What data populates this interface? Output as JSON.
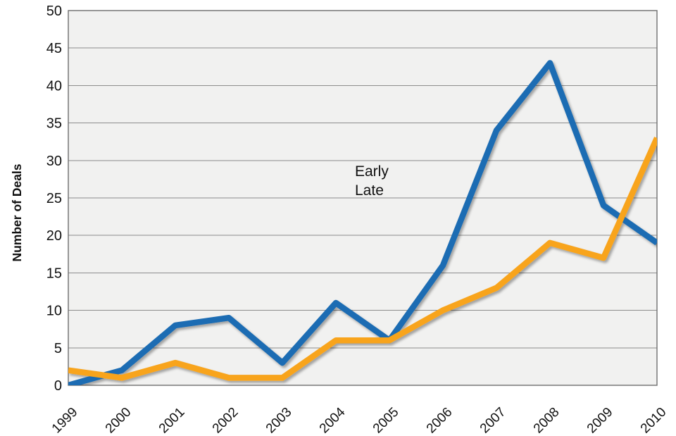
{
  "chart_data": {
    "type": "line",
    "title": "",
    "ylabel": "Number of Deals",
    "xlabel": "",
    "categories": [
      "1999",
      "2000",
      "2001",
      "2002",
      "2003",
      "2004",
      "2005",
      "2006",
      "2007",
      "2008",
      "2009",
      "2010"
    ],
    "series": [
      {
        "name": "Early",
        "color": "#1B6CB3",
        "values": [
          0,
          2,
          8,
          9,
          3,
          11,
          6,
          16,
          34,
          43,
          24,
          19
        ]
      },
      {
        "name": "Late",
        "color": "#F8A41C",
        "values": [
          2,
          1,
          3,
          1,
          1,
          6,
          6,
          10,
          13,
          19,
          17,
          33
        ]
      }
    ],
    "ylim": [
      0,
      50
    ],
    "ytick_step": 5,
    "y_ticks": [
      0,
      5,
      10,
      15,
      20,
      25,
      30,
      35,
      40,
      45,
      50
    ],
    "grid": true,
    "legend_position": "center",
    "colors": {
      "plot_background": "#F1F1F0",
      "outer_background": "#FFFFFF",
      "gridline": "#8C8C8C",
      "plot_border": "#6E6E6E",
      "text": "#111111"
    }
  }
}
